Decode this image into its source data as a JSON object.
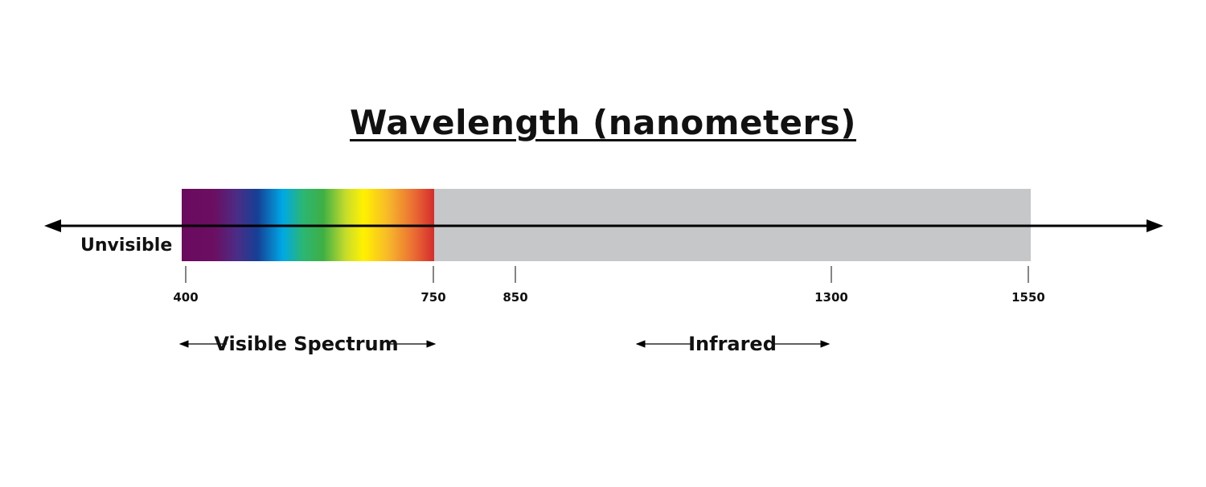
{
  "title": "Wavelength (nanometers)",
  "left_label": "Unvisible",
  "ticks": [
    "400",
    "750",
    "850",
    "1300",
    "1550"
  ],
  "regions": {
    "visible": "Visible Spectrum",
    "infrared": "Infrared"
  },
  "colors": {
    "infrared_band": "#c6c7c8",
    "axis": "#000000",
    "spectrum": [
      "#6a0d5f",
      "#5a1c7a",
      "#1b3f93",
      "#00a6e3",
      "#1fa34a",
      "#f5ea14",
      "#f7a823",
      "#e2562d",
      "#d42a2c"
    ]
  }
}
